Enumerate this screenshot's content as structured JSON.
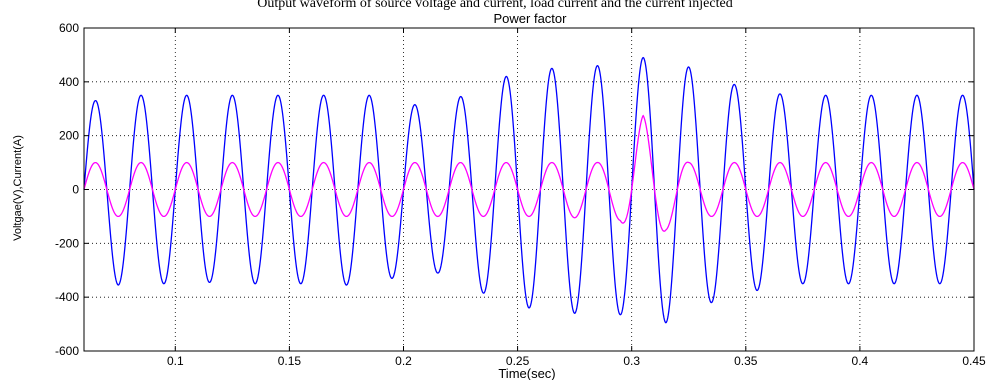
{
  "caption": "Output waveform of source voltage and current, load current and the current injected",
  "chart_data": {
    "type": "line",
    "title": "Power factor",
    "xlabel": "Time(sec)",
    "ylabel": "Voltgae(V),Current(A)",
    "xlim": [
      0.06,
      0.45
    ],
    "ylim": [
      -600,
      600
    ],
    "xticks": [
      0.1,
      0.15,
      0.2,
      0.25,
      0.3,
      0.35,
      0.4,
      0.45
    ],
    "xtick_labels": [
      "0.1",
      "0.15",
      "0.2",
      "0.25",
      "0.3",
      "0.35",
      "0.4",
      "0.45"
    ],
    "yticks": [
      -600,
      -400,
      -200,
      0,
      200,
      400,
      600
    ],
    "ytick_labels": [
      "-600",
      "-400",
      "-200",
      "0",
      "200",
      "400",
      "600"
    ],
    "grid": true,
    "frequency_hz": 50,
    "series": [
      {
        "color": "#0000ff",
        "description": "source voltage, sinusoid 50 Hz; peak amplitude per half-cycle",
        "peaks": [
          [
            0.065,
            330
          ],
          [
            0.075,
            -355
          ],
          [
            0.085,
            350
          ],
          [
            0.095,
            -350
          ],
          [
            0.105,
            350
          ],
          [
            0.115,
            -345
          ],
          [
            0.125,
            350
          ],
          [
            0.135,
            -350
          ],
          [
            0.145,
            350
          ],
          [
            0.155,
            -350
          ],
          [
            0.165,
            350
          ],
          [
            0.175,
            -355
          ],
          [
            0.185,
            350
          ],
          [
            0.195,
            -330
          ],
          [
            0.205,
            315
          ],
          [
            0.215,
            -310
          ],
          [
            0.225,
            345
          ],
          [
            0.235,
            -385
          ],
          [
            0.245,
            420
          ],
          [
            0.255,
            -440
          ],
          [
            0.265,
            450
          ],
          [
            0.275,
            -460
          ],
          [
            0.285,
            460
          ],
          [
            0.295,
            -465
          ],
          [
            0.305,
            490
          ],
          [
            0.315,
            -495
          ],
          [
            0.325,
            455
          ],
          [
            0.335,
            -420
          ],
          [
            0.345,
            390
          ],
          [
            0.355,
            -375
          ],
          [
            0.365,
            355
          ],
          [
            0.375,
            -350
          ],
          [
            0.385,
            350
          ],
          [
            0.395,
            -350
          ],
          [
            0.405,
            350
          ],
          [
            0.415,
            -350
          ],
          [
            0.425,
            350
          ],
          [
            0.435,
            -350
          ],
          [
            0.445,
            350
          ]
        ]
      },
      {
        "color": "#ff00ff",
        "description": "current, sinusoid 50 Hz in phase with voltage; transient near t=0.305",
        "peaks": [
          [
            0.065,
            100
          ],
          [
            0.075,
            -100
          ],
          [
            0.085,
            100
          ],
          [
            0.095,
            -100
          ],
          [
            0.105,
            100
          ],
          [
            0.115,
            -100
          ],
          [
            0.125,
            100
          ],
          [
            0.135,
            -100
          ],
          [
            0.145,
            100
          ],
          [
            0.155,
            -100
          ],
          [
            0.165,
            100
          ],
          [
            0.175,
            -100
          ],
          [
            0.185,
            100
          ],
          [
            0.195,
            -100
          ],
          [
            0.205,
            100
          ],
          [
            0.215,
            -100
          ],
          [
            0.225,
            100
          ],
          [
            0.235,
            -100
          ],
          [
            0.245,
            100
          ],
          [
            0.255,
            -100
          ],
          [
            0.265,
            100
          ],
          [
            0.275,
            -105
          ],
          [
            0.285,
            100
          ],
          [
            0.295,
            -115
          ],
          [
            0.305,
            275
          ],
          [
            0.315,
            -150
          ],
          [
            0.325,
            100
          ],
          [
            0.335,
            -100
          ],
          [
            0.345,
            100
          ],
          [
            0.355,
            -100
          ],
          [
            0.365,
            100
          ],
          [
            0.375,
            -100
          ],
          [
            0.385,
            100
          ],
          [
            0.395,
            -100
          ],
          [
            0.405,
            100
          ],
          [
            0.415,
            -100
          ],
          [
            0.425,
            100
          ],
          [
            0.435,
            -100
          ],
          [
            0.445,
            100
          ]
        ]
      }
    ]
  }
}
